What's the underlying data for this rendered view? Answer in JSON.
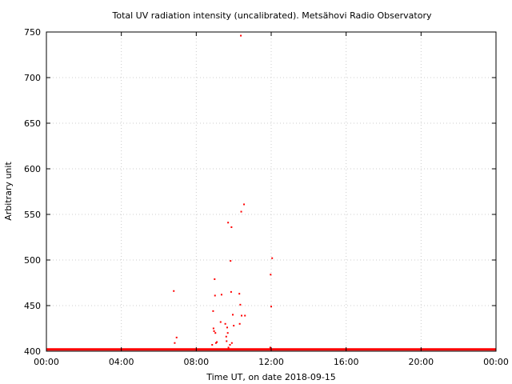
{
  "chart_data": {
    "type": "scatter",
    "title": "Total UV radiation intensity (uncalibrated). Metsähovi Radio Observatory",
    "xlabel": "Time UT, on date 2018-09-15",
    "ylabel": "Arbitrary unit",
    "xlim": [
      0,
      24
    ],
    "ylim": [
      400,
      750
    ],
    "x_ticks": [
      0,
      4,
      8,
      12,
      16,
      20,
      24
    ],
    "x_tick_labels": [
      "00:00",
      "04:00",
      "08:00",
      "12:00",
      "16:00",
      "20:00",
      "00:00"
    ],
    "y_ticks": [
      400,
      450,
      500,
      550,
      600,
      650,
      700,
      750
    ],
    "y_tick_labels": [
      "400",
      "450",
      "500",
      "550",
      "600",
      "650",
      "700",
      "750"
    ],
    "grid": true,
    "point_color": "#ff0000",
    "grid_color": "#cccccc",
    "baseline": {
      "value": 402,
      "x_start": 0,
      "x_end": 24
    },
    "points": [
      {
        "x": 6.8,
        "y": 466
      },
      {
        "x": 6.85,
        "y": 409
      },
      {
        "x": 6.95,
        "y": 415
      },
      {
        "x": 8.85,
        "y": 407
      },
      {
        "x": 8.9,
        "y": 444
      },
      {
        "x": 8.92,
        "y": 425
      },
      {
        "x": 8.95,
        "y": 422
      },
      {
        "x": 8.98,
        "y": 479
      },
      {
        "x": 9.0,
        "y": 461
      },
      {
        "x": 9.02,
        "y": 420
      },
      {
        "x": 9.05,
        "y": 409
      },
      {
        "x": 9.1,
        "y": 410
      },
      {
        "x": 9.3,
        "y": 432
      },
      {
        "x": 9.35,
        "y": 462
      },
      {
        "x": 9.55,
        "y": 430
      },
      {
        "x": 9.6,
        "y": 416
      },
      {
        "x": 9.62,
        "y": 411
      },
      {
        "x": 9.65,
        "y": 426
      },
      {
        "x": 9.68,
        "y": 420
      },
      {
        "x": 9.7,
        "y": 541
      },
      {
        "x": 9.72,
        "y": 404
      },
      {
        "x": 9.8,
        "y": 407
      },
      {
        "x": 9.83,
        "y": 499
      },
      {
        "x": 9.86,
        "y": 465
      },
      {
        "x": 9.88,
        "y": 536
      },
      {
        "x": 9.9,
        "y": 409
      },
      {
        "x": 9.95,
        "y": 440
      },
      {
        "x": 10.0,
        "y": 428
      },
      {
        "x": 10.3,
        "y": 463
      },
      {
        "x": 10.32,
        "y": 430
      },
      {
        "x": 10.35,
        "y": 451
      },
      {
        "x": 10.38,
        "y": 746
      },
      {
        "x": 10.4,
        "y": 553
      },
      {
        "x": 10.42,
        "y": 439
      },
      {
        "x": 10.55,
        "y": 561
      },
      {
        "x": 10.6,
        "y": 439
      },
      {
        "x": 11.95,
        "y": 404
      },
      {
        "x": 11.97,
        "y": 484
      },
      {
        "x": 12.0,
        "y": 449
      },
      {
        "x": 12.05,
        "y": 502
      }
    ]
  }
}
